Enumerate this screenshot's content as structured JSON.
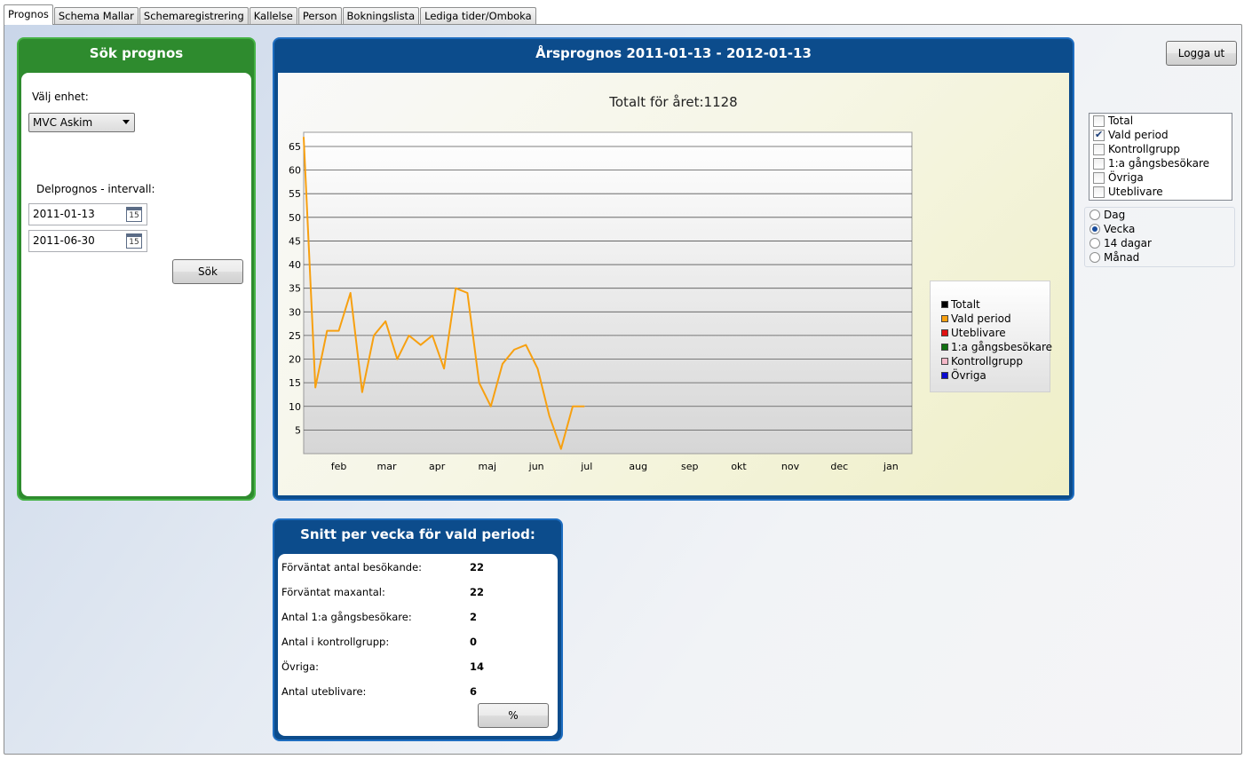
{
  "tabs": [
    "Prognos",
    "Schema Mallar",
    "Schemaregistrering",
    "Kallelse",
    "Person",
    "Bokningslista",
    "Lediga tider/Omboka"
  ],
  "search": {
    "title": "Sök prognos",
    "unit_label": "Välj enhet:",
    "unit_value": "MVC Askim",
    "interval_label": "Delprognos - intervall:",
    "date_from": "2011-01-13",
    "date_to": "2011-06-30",
    "calendar_day": "15",
    "search_button": "Sök"
  },
  "chart_panel": {
    "title": "Årsprognos 2011-01-13 - 2012-01-13",
    "total_text": "Totalt för året:1128"
  },
  "chart_data": {
    "type": "line",
    "title": "Totalt för året:1128",
    "xlabel": "",
    "ylabel": "",
    "ylim": [
      0,
      68
    ],
    "yticks": [
      5,
      10,
      15,
      20,
      25,
      30,
      35,
      40,
      45,
      50,
      55,
      60,
      65
    ],
    "xlim": [
      0,
      52
    ],
    "months": [
      "feb",
      "mar",
      "apr",
      "maj",
      "jun",
      "jul",
      "aug",
      "sep",
      "okt",
      "nov",
      "dec",
      "jan"
    ],
    "month_positions": [
      3,
      7.1,
      11.4,
      15.7,
      19.9,
      24.2,
      28.6,
      33,
      37.2,
      41.6,
      45.8,
      50.2
    ],
    "grid": true,
    "legend_position": "right",
    "legend": [
      {
        "name": "Totalt",
        "color": "#000000"
      },
      {
        "name": "Vald period",
        "color": "#f7a010"
      },
      {
        "name": "Uteblivare",
        "color": "#e01010"
      },
      {
        "name": "1:a gångsbesökare",
        "color": "#107010"
      },
      {
        "name": "Kontrollgrupp",
        "color": "#f4b8c8"
      },
      {
        "name": "Övriga",
        "color": "#0a0ad0"
      }
    ],
    "series": [
      {
        "name": "Vald period",
        "color": "#f7a010",
        "x": [
          0,
          1,
          2,
          3,
          4,
          5,
          6,
          7,
          8,
          9,
          10,
          11,
          12,
          13,
          14,
          15,
          16,
          17,
          18,
          19,
          20,
          21,
          22,
          23,
          24
        ],
        "values": [
          67,
          14,
          26,
          26,
          34,
          13,
          25,
          28,
          20,
          25,
          23,
          25,
          18,
          35,
          34,
          15,
          10,
          19,
          22,
          23,
          18,
          8,
          1,
          10,
          10
        ]
      }
    ]
  },
  "stats": {
    "title": "Snitt per vecka för vald period:",
    "rows": [
      {
        "label": "Förväntat antal besökande:",
        "value": "22"
      },
      {
        "label": "Förväntat maxantal:",
        "value": "22"
      },
      {
        "label": "Antal 1:a gångsbesökare:",
        "value": "2"
      },
      {
        "label": "Antal i kontrollgrupp:",
        "value": "0"
      },
      {
        "label": "Övriga:",
        "value": "14"
      },
      {
        "label": "Antal uteblivare:",
        "value": "6"
      }
    ],
    "percent_button": "%"
  },
  "logout_button": "Logga ut",
  "filters": [
    {
      "label": "Total",
      "checked": false
    },
    {
      "label": "Vald period",
      "checked": true
    },
    {
      "label": "Kontrollgrupp",
      "checked": false
    },
    {
      "label": "1:a gångsbesökare",
      "checked": false
    },
    {
      "label": "Övriga",
      "checked": false
    },
    {
      "label": "Uteblivare",
      "checked": false
    }
  ],
  "intervals": [
    {
      "label": "Dag",
      "selected": false
    },
    {
      "label": "Vecka",
      "selected": true
    },
    {
      "label": "14 dagar",
      "selected": false
    },
    {
      "label": "Månad",
      "selected": false
    }
  ]
}
